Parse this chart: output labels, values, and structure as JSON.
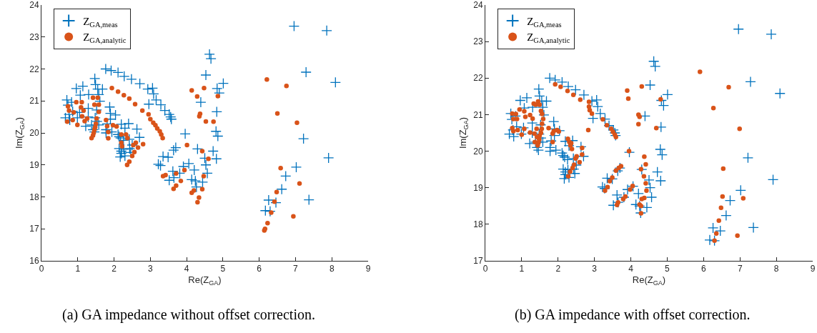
{
  "chart_data": [
    {
      "type": "scatter",
      "xlabel": "Re(Z$_{GA}$)",
      "ylabel": "Im(Z$_{GA}$)",
      "xlim": [
        0,
        9
      ],
      "xticks": [
        0,
        1,
        2,
        3,
        4,
        5,
        6,
        7,
        8,
        9
      ],
      "ylim": [
        16,
        24
      ],
      "yticks": [
        16,
        17,
        18,
        19,
        20,
        21,
        22,
        23,
        24
      ],
      "legend": "top left",
      "annotations": [
        "(a) GA impedance without offset correction."
      ],
      "series": [
        {
          "name": "Z$_{GA,meas}$",
          "color": "#0072bd",
          "marker": "cross",
          "x": [
            0.66,
            0.7,
            0.73,
            0.76,
            0.78,
            0.83,
            0.86,
            0.96,
            0.99,
            1.05,
            1.07,
            1.14,
            1.22,
            1.29,
            1.29,
            1.3,
            1.38,
            1.42,
            1.46,
            1.47,
            1.48,
            1.49,
            1.52,
            1.53,
            1.55,
            1.58,
            1.58,
            1.61,
            1.68,
            1.77,
            1.78,
            1.78,
            1.81,
            1.88,
            1.9,
            1.9,
            1.92,
            1.94,
            2.04,
            2.11,
            2.11,
            2.14,
            2.14,
            2.17,
            2.18,
            2.2,
            2.2,
            2.2,
            2.26,
            2.27,
            2.28,
            2.3,
            2.3,
            2.4,
            2.42,
            2.43,
            2.46,
            2.48,
            2.5,
            2.63,
            2.7,
            2.71,
            2.93,
            2.96,
            3.06,
            3.09,
            3.16,
            3.22,
            3.28,
            3.29,
            3.35,
            3.4,
            3.49,
            3.52,
            3.52,
            3.56,
            3.58,
            3.62,
            3.64,
            3.65,
            3.7,
            3.81,
            3.91,
            3.96,
            4.06,
            4.14,
            4.21,
            4.24,
            4.27,
            4.3,
            4.39,
            4.44,
            4.5,
            4.53,
            4.53,
            4.57,
            4.63,
            4.67,
            4.73,
            4.81,
            4.82,
            4.83,
            4.84,
            4.86,
            4.9,
            5.01,
            6.17,
            6.26,
            6.3,
            6.46,
            6.62,
            6.73,
            6.96,
            7.02,
            7.22,
            7.29,
            7.37,
            7.86,
            7.91,
            8.1
          ],
          "values": [
            20.47,
            21.03,
            20.87,
            20.58,
            20.4,
            20.96,
            20.67,
            21.39,
            20.47,
            20.64,
            21.18,
            21.46,
            20.21,
            20.77,
            20.5,
            21.2,
            20.25,
            20.1,
            20.03,
            21.7,
            20.47,
            21.51,
            20.72,
            20.36,
            21.37,
            21.2,
            20.25,
            20.99,
            21.37,
            22.0,
            20.1,
            20.0,
            20.28,
            20.81,
            20.61,
            20.43,
            21.95,
            20.03,
            20.56,
            21.89,
            19.95,
            19.88,
            19.51,
            19.25,
            19.84,
            20.27,
            19.43,
            19.36,
            19.77,
            19.49,
            21.77,
            20.15,
            19.28,
            20.29,
            19.8,
            19.51,
            19.39,
            21.68,
            19.62,
            20.12,
            19.86,
            21.54,
            21.37,
            20.9,
            21.4,
            21.22,
            21.03,
            19.02,
            18.98,
            20.88,
            19.26,
            20.7,
            19.24,
            20.58,
            18.52,
            20.5,
            20.43,
            18.8,
            19.46,
            18.6,
            19.54,
            18.74,
            18.95,
            19.97,
            19.04,
            18.54,
            18.84,
            18.5,
            18.31,
            19.5,
            20.96,
            18.46,
            19.21,
            21.81,
            19.0,
            18.74,
            22.46,
            22.32,
            19.43,
            20.05,
            19.19,
            20.66,
            21.39,
            19.9,
            21.25,
            21.55,
            17.57,
            17.9,
            17.55,
            17.82,
            18.24,
            18.65,
            23.34,
            18.93,
            19.82,
            21.9,
            17.91,
            23.2,
            19.22,
            21.58
          ]
        },
        {
          "name": "Z$_{GA,analytic}$",
          "color": "#d95319",
          "marker": "circle",
          "x": [
            0.71,
            0.73,
            0.76,
            0.86,
            0.89,
            0.96,
            0.99,
            1.09,
            1.11,
            1.12,
            1.16,
            1.19,
            1.26,
            1.38,
            1.42,
            1.42,
            1.44,
            1.46,
            1.46,
            1.48,
            1.5,
            1.52,
            1.55,
            1.58,
            1.58,
            1.78,
            1.81,
            1.84,
            1.84,
            1.94,
            1.97,
            2.07,
            2.11,
            2.2,
            2.2,
            2.22,
            2.27,
            2.33,
            2.36,
            2.37,
            2.42,
            2.42,
            2.5,
            2.53,
            2.56,
            2.58,
            2.6,
            2.66,
            2.78,
            2.8,
            2.95,
            3.0,
            3.08,
            3.14,
            3.19,
            3.26,
            3.3,
            3.34,
            3.35,
            3.42,
            3.64,
            3.71,
            3.71,
            3.84,
            3.94,
            4.01,
            4.14,
            4.14,
            4.2,
            4.29,
            4.3,
            4.34,
            4.35,
            4.37,
            4.43,
            4.43,
            4.47,
            4.48,
            4.53,
            4.6,
            4.74,
            4.86,
            6.14,
            6.16,
            6.21,
            6.23,
            6.33,
            6.42,
            6.48,
            6.5,
            6.59,
            6.75,
            6.94,
            7.04,
            7.11
          ],
          "values": [
            20.35,
            20.83,
            20.7,
            20.4,
            20.64,
            20.96,
            20.25,
            20.8,
            20.96,
            20.52,
            20.7,
            20.37,
            20.45,
            19.84,
            21.1,
            19.92,
            20.0,
            20.88,
            20.1,
            20.18,
            20.29,
            20.45,
            21.1,
            20.88,
            20.66,
            20.4,
            20.21,
            20.03,
            19.83,
            21.4,
            20.24,
            20.2,
            21.29,
            19.95,
            19.69,
            19.58,
            21.18,
            19.95,
            19.0,
            19.84,
            21.07,
            19.1,
            19.28,
            19.62,
            19.4,
            20.9,
            19.69,
            19.54,
            20.7,
            19.65,
            20.58,
            20.43,
            20.32,
            20.24,
            20.14,
            20.05,
            19.95,
            19.84,
            18.65,
            18.68,
            18.25,
            18.73,
            18.35,
            18.5,
            18.84,
            19.62,
            21.33,
            18.13,
            18.2,
            21.14,
            17.83,
            17.98,
            20.52,
            20.6,
            19.43,
            18.24,
            18.65,
            21.4,
            20.36,
            19.19,
            20.35,
            21.15,
            16.95,
            17.0,
            21.67,
            17.18,
            17.51,
            17.85,
            18.15,
            20.61,
            18.9,
            21.47,
            17.39,
            20.32,
            18.42
          ]
        }
      ]
    },
    {
      "type": "scatter",
      "xlabel": "Re(Z$_{GA}$)",
      "ylabel": "Im(Z$_{GA}$)",
      "xlim": [
        0,
        9
      ],
      "xticks": [
        0,
        1,
        2,
        3,
        4,
        5,
        6,
        7,
        8,
        9
      ],
      "ylim": [
        17,
        24
      ],
      "yticks": [
        17,
        18,
        19,
        20,
        21,
        22,
        23,
        24
      ],
      "legend": "top left",
      "annotations": [
        "(b) GA impedance with offset correction."
      ],
      "series": [
        {
          "name": "Z$_{GA,meas}$",
          "color": "#0072bd",
          "marker": "cross",
          "x": [
            0.66,
            0.7,
            0.73,
            0.76,
            0.78,
            0.83,
            0.86,
            0.96,
            0.99,
            1.05,
            1.07,
            1.14,
            1.22,
            1.29,
            1.29,
            1.3,
            1.38,
            1.42,
            1.46,
            1.47,
            1.48,
            1.49,
            1.52,
            1.53,
            1.55,
            1.58,
            1.58,
            1.61,
            1.68,
            1.77,
            1.78,
            1.78,
            1.81,
            1.88,
            1.9,
            1.9,
            1.92,
            1.94,
            2.04,
            2.11,
            2.11,
            2.14,
            2.14,
            2.17,
            2.18,
            2.2,
            2.2,
            2.2,
            2.26,
            2.27,
            2.28,
            2.3,
            2.3,
            2.4,
            2.42,
            2.43,
            2.46,
            2.48,
            2.5,
            2.63,
            2.7,
            2.71,
            2.93,
            2.96,
            3.06,
            3.09,
            3.16,
            3.22,
            3.28,
            3.29,
            3.35,
            3.4,
            3.49,
            3.52,
            3.52,
            3.56,
            3.58,
            3.62,
            3.64,
            3.65,
            3.7,
            3.81,
            3.91,
            3.96,
            4.06,
            4.14,
            4.21,
            4.24,
            4.27,
            4.3,
            4.39,
            4.44,
            4.5,
            4.53,
            4.53,
            4.57,
            4.63,
            4.67,
            4.73,
            4.81,
            4.82,
            4.83,
            4.84,
            4.86,
            4.9,
            5.01,
            6.17,
            6.26,
            6.3,
            6.46,
            6.62,
            6.73,
            6.96,
            7.02,
            7.22,
            7.29,
            7.37,
            7.86,
            7.91,
            8.1
          ],
          "values": [
            20.47,
            21.03,
            20.87,
            20.58,
            20.4,
            20.96,
            20.67,
            21.39,
            20.47,
            20.64,
            21.18,
            21.46,
            20.21,
            20.77,
            20.5,
            21.2,
            20.25,
            20.1,
            20.03,
            21.7,
            20.47,
            21.51,
            20.72,
            20.36,
            21.37,
            21.2,
            20.25,
            20.99,
            21.37,
            22.0,
            20.1,
            20.0,
            20.28,
            20.81,
            20.61,
            20.43,
            21.95,
            20.03,
            20.56,
            21.89,
            19.95,
            19.88,
            19.51,
            19.25,
            19.84,
            20.27,
            19.43,
            19.36,
            19.77,
            19.49,
            21.77,
            20.15,
            19.28,
            20.29,
            19.8,
            19.51,
            19.39,
            21.68,
            19.62,
            20.12,
            19.86,
            21.54,
            21.37,
            20.9,
            21.4,
            21.22,
            21.03,
            19.02,
            18.98,
            20.88,
            19.26,
            20.7,
            19.24,
            20.58,
            18.52,
            20.5,
            20.43,
            18.8,
            19.46,
            18.6,
            19.54,
            18.74,
            18.95,
            19.97,
            19.04,
            18.54,
            18.84,
            18.5,
            18.31,
            19.5,
            20.96,
            18.46,
            19.21,
            21.81,
            19.0,
            18.74,
            22.46,
            22.32,
            19.43,
            20.05,
            19.19,
            20.66,
            21.39,
            19.9,
            21.25,
            21.55,
            17.57,
            17.9,
            17.55,
            17.82,
            18.24,
            18.65,
            23.34,
            18.93,
            19.82,
            21.9,
            17.91,
            23.2,
            19.22,
            21.58
          ]
        },
        {
          "name": "Z$_{GA,analytic}$",
          "color": "#d95319",
          "marker": "circle",
          "x": [
            0.74,
            0.84,
            0.77,
            0.87,
            0.74,
            0.77,
            0.89,
            1.0,
            0.94,
            1.07,
            1.1,
            1.23,
            1.3,
            1.07,
            1.23,
            1.33,
            1.38,
            1.45,
            1.49,
            1.53,
            1.56,
            1.59,
            1.56,
            1.55,
            1.53,
            1.49,
            1.48,
            1.46,
            1.44,
            1.42,
            1.35,
            1.36,
            1.41,
            1.74,
            1.85,
            1.85,
            1.88,
            1.97,
            2.02,
            1.92,
            2.07,
            2.26,
            2.42,
            2.61,
            2.27,
            2.31,
            2.34,
            2.38,
            2.36,
            2.51,
            2.48,
            2.44,
            2.4,
            2.33,
            2.28,
            2.66,
            2.66,
            2.59,
            2.85,
            2.85,
            2.87,
            2.93,
            2.83,
            3.23,
            3.34,
            3.46,
            3.51,
            3.56,
            3.59,
            3.49,
            3.42,
            3.36,
            3.29,
            3.59,
            3.67,
            3.73,
            3.85,
            3.79,
            3.65,
            3.62,
            3.95,
            4.05,
            3.98,
            3.9,
            3.93,
            4.21,
            4.24,
            4.21,
            4.3,
            4.37,
            4.41,
            4.28,
            4.36,
            4.41,
            4.43,
            4.37,
            4.3,
            4.28,
            4.28,
            4.24,
            4.7,
            4.82,
            5.9,
            6.69,
            6.27,
            6.99,
            6.54,
            6.52,
            7.09,
            6.48,
            6.42,
            6.35,
            6.93,
            6.3
          ],
          "values": [
            21.03,
            21.02,
            20.88,
            20.88,
            20.63,
            20.55,
            20.58,
            20.45,
            21.14,
            21.09,
            20.94,
            20.99,
            20.89,
            20.61,
            20.51,
            21.3,
            21.27,
            21.36,
            21.27,
            21.1,
            21.02,
            20.88,
            20.75,
            20.61,
            20.5,
            20.42,
            20.32,
            20.23,
            20.16,
            20.39,
            20.48,
            20.25,
            20.61,
            20.63,
            20.48,
            20.25,
            20.55,
            20.58,
            20.54,
            21.83,
            21.76,
            21.65,
            21.54,
            21.41,
            20.34,
            20.25,
            20.16,
            20.06,
            20.22,
            19.86,
            19.8,
            19.63,
            19.54,
            19.44,
            19.31,
            20.09,
            19.91,
            19.7,
            21.35,
            21.22,
            21.12,
            21.03,
            20.58,
            20.87,
            20.71,
            20.61,
            20.53,
            20.45,
            20.39,
            19.28,
            19.18,
            19.02,
            18.92,
            19.47,
            19.54,
            19.59,
            18.76,
            18.69,
            18.6,
            18.53,
            20.0,
            19.05,
            18.95,
            21.66,
            21.44,
            21.0,
            20.94,
            20.74,
            21.77,
            19.85,
            19.64,
            19.51,
            19.31,
            19.12,
            18.92,
            18.72,
            18.69,
            18.5,
            18.3,
            18.54,
            20.63,
            21.42,
            22.17,
            21.75,
            21.18,
            20.61,
            19.52,
            18.76,
            18.71,
            18.45,
            18.1,
            17.75,
            17.69,
            17.55
          ]
        }
      ]
    }
  ]
}
